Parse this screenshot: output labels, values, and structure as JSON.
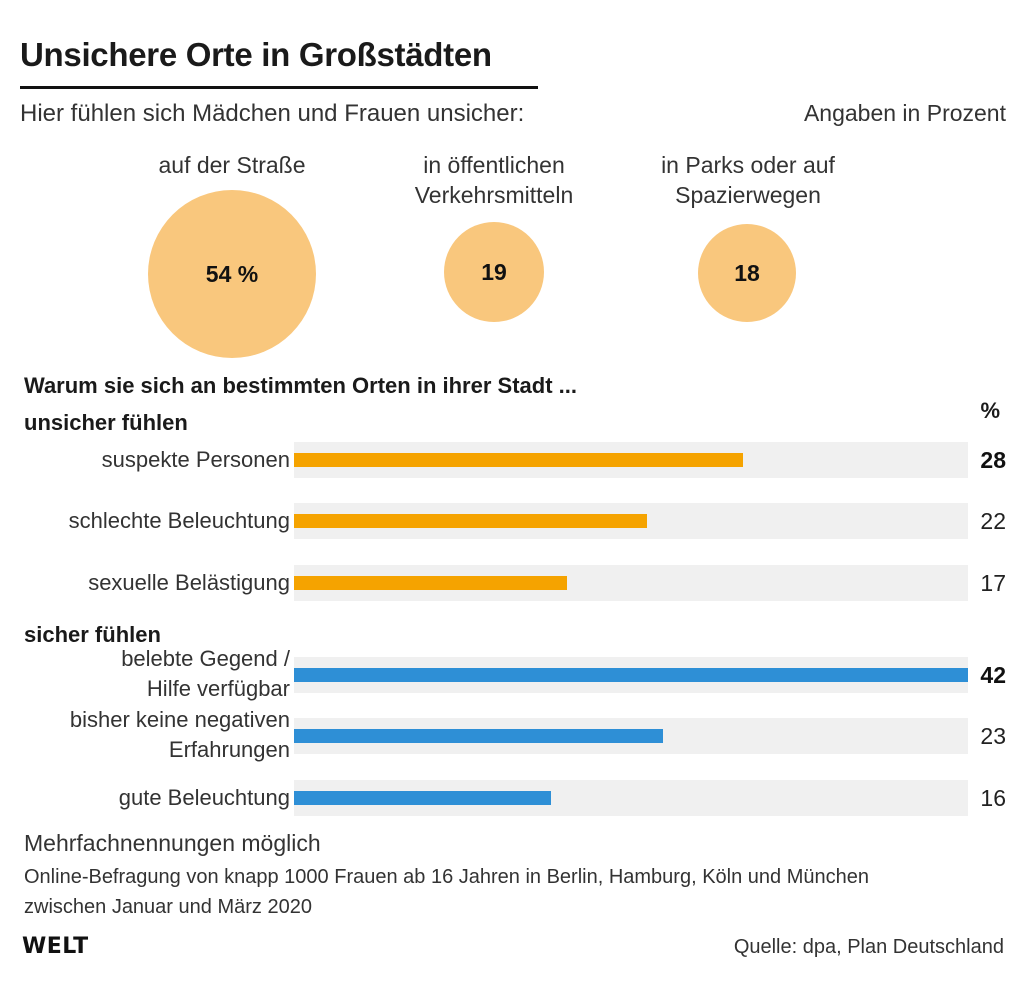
{
  "title": "Unsichere Orte in Großstädten",
  "subtitle": "Hier fühlen sich Mädchen und Frauen unsicher:",
  "unit_note": "Angaben in Prozent",
  "bubbles": [
    {
      "label": "auf der Straße",
      "value_label": "54 %",
      "value": 54
    },
    {
      "label": "in öffentlichen Verkehrsmitteln",
      "value_label": "19",
      "value": 19
    },
    {
      "label": "in Parks oder auf Spazierwegen",
      "value_label": "18",
      "value": 18
    }
  ],
  "question": "Warum sie sich an bestimmten Orten in ihrer Stadt ...",
  "percent_header": "%",
  "chart_data": {
    "type": "bar",
    "orientation": "horizontal",
    "xlim": [
      0,
      42
    ],
    "groups": [
      {
        "name": "unsicher fühlen",
        "color": "#f5a300",
        "items": [
          {
            "label": "suspekte Personen",
            "value": 28,
            "highlight": true
          },
          {
            "label": "schlechte Beleuchtung",
            "value": 22
          },
          {
            "label": "sexuelle Belästigung",
            "value": 17
          }
        ]
      },
      {
        "name": "sicher fühlen",
        "color": "#2e8fd6",
        "items": [
          {
            "label": "belebte Gegend / Hilfe verfügbar",
            "value": 42,
            "highlight": true
          },
          {
            "label": "bisher keine negativen Erfahrungen",
            "value": 23
          },
          {
            "label": "gute Beleuchtung",
            "value": 16
          }
        ]
      }
    ]
  },
  "footnote": "Mehrfachnennungen möglich",
  "methodology": "Online-Befragung von knapp 1000 Frauen ab 16 Jahren in Berlin, Hamburg, Köln und München zwischen Januar und März 2020",
  "logo": "WELT",
  "source": "Quelle: dpa, Plan Deutschland"
}
